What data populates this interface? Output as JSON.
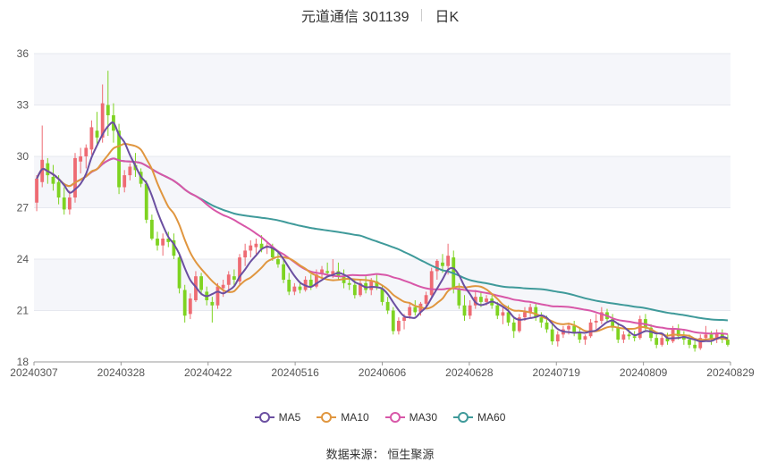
{
  "header": {
    "stock": "元道通信 301139",
    "period": "日K"
  },
  "footer": {
    "source_label": "数据来源：",
    "source_name": "恒生聚源"
  },
  "colors": {
    "up": "#ee6b73",
    "down": "#7ed321",
    "ma5": "#6b4fa1",
    "ma10": "#e0963f",
    "ma30": "#d857a8",
    "ma60": "#3f9a9a"
  },
  "chart_data": {
    "type": "candlestick",
    "y_ticks": [
      18,
      21,
      24,
      27,
      30,
      33,
      36
    ],
    "ylim": [
      18,
      36
    ],
    "x_tick_labels": [
      "20240307",
      "20240328",
      "20240422",
      "20240516",
      "20240606",
      "20240628",
      "20240719",
      "20240809",
      "20240829"
    ],
    "legend": [
      {
        "key": "ma5",
        "label": "MA5"
      },
      {
        "key": "ma10",
        "label": "MA10"
      },
      {
        "key": "ma30",
        "label": "MA30"
      },
      {
        "key": "ma60",
        "label": "MA60"
      }
    ],
    "ohlc": [
      [
        27.3,
        28.9,
        26.8,
        28.7
      ],
      [
        28.5,
        31.8,
        28.2,
        29.8
      ],
      [
        29.6,
        29.9,
        28.4,
        28.9
      ],
      [
        28.8,
        29.5,
        28.0,
        28.4
      ],
      [
        28.5,
        28.9,
        27.2,
        27.6
      ],
      [
        27.6,
        28.2,
        26.6,
        26.9
      ],
      [
        26.9,
        28.0,
        26.6,
        27.6
      ],
      [
        27.6,
        30.2,
        27.3,
        29.9
      ],
      [
        29.7,
        30.5,
        29.0,
        30.0
      ],
      [
        30.0,
        30.7,
        29.3,
        30.5
      ],
      [
        30.4,
        32.1,
        30.1,
        31.7
      ],
      [
        31.5,
        32.6,
        30.6,
        31.1
      ],
      [
        31.1,
        34.2,
        30.8,
        33.1
      ],
      [
        33.0,
        35.0,
        31.2,
        32.4
      ],
      [
        32.4,
        33.1,
        30.8,
        31.5
      ],
      [
        31.5,
        31.9,
        27.8,
        28.2
      ],
      [
        28.2,
        29.2,
        27.9,
        28.9
      ],
      [
        28.9,
        29.6,
        28.6,
        29.4
      ],
      [
        29.5,
        30.2,
        28.8,
        29.2
      ],
      [
        29.1,
        29.3,
        28.2,
        28.4
      ],
      [
        28.4,
        28.6,
        26.1,
        26.3
      ],
      [
        26.3,
        26.6,
        25.1,
        25.2
      ],
      [
        25.2,
        25.6,
        24.5,
        24.8
      ],
      [
        24.8,
        25.5,
        24.2,
        25.2
      ],
      [
        25.2,
        25.6,
        24.7,
        25.0
      ],
      [
        25.1,
        25.5,
        24.0,
        24.2
      ],
      [
        24.1,
        24.4,
        22.0,
        22.3
      ],
      [
        22.2,
        22.5,
        20.3,
        20.7
      ],
      [
        20.8,
        22.0,
        20.5,
        21.7
      ],
      [
        21.6,
        23.3,
        21.5,
        23.0
      ],
      [
        23.0,
        23.2,
        21.9,
        22.2
      ],
      [
        22.1,
        22.4,
        21.3,
        21.6
      ],
      [
        21.5,
        21.8,
        20.3,
        21.3
      ],
      [
        21.3,
        22.6,
        21.1,
        22.4
      ],
      [
        22.3,
        22.8,
        21.8,
        22.5
      ],
      [
        22.5,
        23.3,
        22.1,
        23.1
      ],
      [
        23.0,
        23.4,
        22.4,
        22.8
      ],
      [
        22.7,
        24.3,
        22.5,
        24.1
      ],
      [
        24.1,
        24.9,
        23.6,
        24.5
      ],
      [
        24.5,
        25.1,
        24.1,
        24.8
      ],
      [
        24.7,
        25.2,
        24.3,
        24.9
      ],
      [
        24.9,
        25.4,
        24.4,
        24.6
      ],
      [
        24.7,
        25.0,
        24.3,
        24.8
      ],
      [
        24.7,
        24.9,
        23.9,
        24.1
      ],
      [
        24.0,
        24.4,
        23.5,
        23.7
      ],
      [
        23.7,
        24.0,
        22.6,
        22.8
      ],
      [
        22.8,
        23.2,
        21.9,
        22.1
      ],
      [
        22.1,
        22.6,
        21.9,
        22.4
      ],
      [
        22.4,
        22.6,
        22.0,
        22.2
      ],
      [
        22.2,
        23.0,
        22.1,
        22.8
      ],
      [
        22.8,
        23.1,
        22.2,
        22.4
      ],
      [
        22.4,
        23.4,
        22.3,
        23.1
      ],
      [
        23.2,
        23.6,
        22.9,
        23.4
      ],
      [
        23.3,
        23.8,
        23.0,
        23.2
      ],
      [
        23.1,
        24.0,
        22.9,
        23.3
      ],
      [
        23.3,
        23.8,
        22.8,
        23.0
      ],
      [
        23.0,
        23.4,
        22.3,
        22.6
      ],
      [
        22.6,
        22.9,
        22.2,
        22.5
      ],
      [
        22.5,
        22.8,
        21.7,
        21.9
      ],
      [
        21.9,
        22.8,
        21.8,
        22.6
      ],
      [
        22.6,
        23.0,
        22.0,
        22.2
      ],
      [
        22.2,
        22.9,
        21.9,
        22.7
      ],
      [
        22.7,
        23.1,
        22.2,
        22.4
      ],
      [
        22.3,
        22.5,
        21.3,
        21.5
      ],
      [
        21.5,
        21.8,
        20.8,
        21.0
      ],
      [
        21.0,
        21.2,
        19.6,
        19.8
      ],
      [
        19.8,
        20.6,
        19.6,
        20.4
      ],
      [
        20.4,
        20.8,
        19.9,
        20.6
      ],
      [
        20.7,
        21.5,
        20.5,
        21.2
      ],
      [
        21.2,
        21.6,
        20.7,
        20.9
      ],
      [
        20.9,
        21.5,
        20.7,
        21.4
      ],
      [
        21.4,
        22.1,
        21.2,
        21.9
      ],
      [
        21.9,
        23.5,
        21.8,
        23.3
      ],
      [
        23.3,
        24.0,
        22.8,
        23.9
      ],
      [
        23.8,
        24.3,
        23.2,
        23.6
      ],
      [
        23.6,
        24.9,
        23.1,
        24.2
      ],
      [
        24.1,
        24.5,
        22.0,
        22.3
      ],
      [
        22.3,
        22.6,
        21.1,
        21.3
      ],
      [
        21.3,
        21.9,
        20.4,
        20.7
      ],
      [
        20.7,
        21.6,
        20.5,
        21.3
      ],
      [
        21.3,
        22.2,
        21.1,
        21.8
      ],
      [
        21.8,
        22.1,
        21.2,
        21.5
      ],
      [
        21.5,
        21.9,
        21.3,
        21.7
      ],
      [
        21.7,
        21.9,
        21.1,
        21.3
      ],
      [
        21.3,
        21.5,
        20.5,
        20.7
      ],
      [
        20.7,
        21.2,
        20.2,
        20.9
      ],
      [
        20.9,
        21.3,
        20.1,
        20.3
      ],
      [
        20.3,
        20.6,
        19.4,
        19.8
      ],
      [
        19.8,
        20.8,
        19.7,
        20.6
      ],
      [
        20.6,
        21.2,
        20.4,
        20.9
      ],
      [
        20.9,
        21.4,
        20.6,
        21.2
      ],
      [
        21.2,
        21.4,
        20.4,
        20.6
      ],
      [
        20.6,
        20.9,
        20.0,
        20.3
      ],
      [
        20.3,
        20.7,
        19.7,
        19.9
      ],
      [
        19.9,
        20.2,
        19.0,
        19.2
      ],
      [
        19.2,
        19.8,
        18.9,
        19.6
      ],
      [
        19.6,
        20.1,
        19.4,
        19.9
      ],
      [
        19.9,
        20.3,
        19.6,
        20.1
      ],
      [
        20.1,
        20.4,
        19.5,
        19.7
      ],
      [
        19.7,
        20.0,
        19.1,
        19.3
      ],
      [
        19.3,
        19.6,
        19.0,
        19.5
      ],
      [
        19.5,
        20.5,
        19.4,
        20.3
      ],
      [
        20.3,
        20.8,
        19.9,
        20.4
      ],
      [
        20.4,
        21.2,
        20.2,
        20.9
      ],
      [
        20.9,
        21.1,
        20.3,
        20.5
      ],
      [
        20.5,
        20.8,
        19.8,
        20.0
      ],
      [
        20.0,
        20.3,
        19.1,
        19.3
      ],
      [
        19.3,
        19.8,
        19.1,
        19.6
      ],
      [
        19.6,
        19.9,
        19.3,
        19.5
      ],
      [
        19.5,
        19.8,
        19.2,
        19.4
      ],
      [
        19.4,
        20.7,
        19.3,
        20.5
      ],
      [
        20.5,
        20.8,
        19.8,
        20.0
      ],
      [
        20.0,
        20.2,
        19.2,
        19.4
      ],
      [
        19.4,
        19.6,
        18.8,
        19.0
      ],
      [
        19.0,
        19.6,
        18.9,
        19.4
      ],
      [
        19.4,
        19.7,
        19.0,
        19.2
      ],
      [
        19.2,
        20.1,
        19.1,
        19.9
      ],
      [
        19.9,
        20.2,
        19.3,
        19.5
      ],
      [
        19.5,
        19.8,
        19.0,
        19.3
      ],
      [
        19.3,
        19.6,
        18.8,
        19.0
      ],
      [
        19.0,
        19.3,
        18.6,
        18.8
      ],
      [
        18.8,
        19.6,
        18.7,
        19.4
      ],
      [
        19.4,
        20.1,
        19.2,
        19.6
      ],
      [
        19.6,
        19.8,
        19.0,
        19.3
      ],
      [
        19.3,
        19.9,
        19.1,
        19.7
      ],
      [
        19.7,
        19.9,
        19.1,
        19.3
      ],
      [
        19.3,
        19.6,
        18.9,
        19.0
      ]
    ]
  }
}
